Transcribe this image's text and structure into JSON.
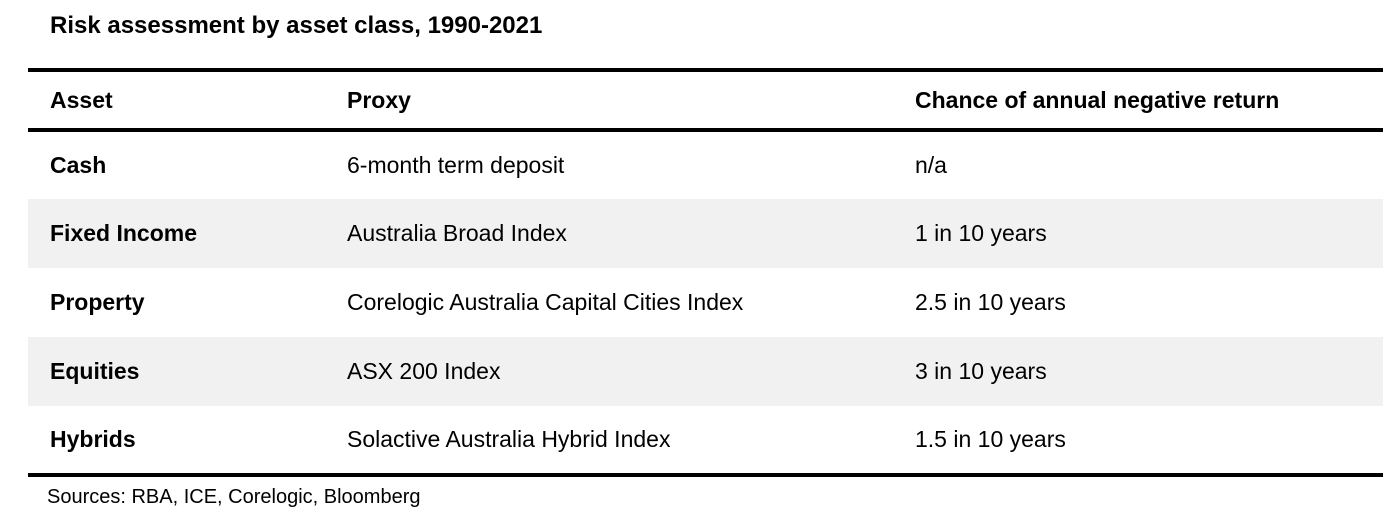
{
  "title": "Risk assessment by asset class, 1990-2021",
  "table": {
    "columns": [
      "Asset",
      "Proxy",
      "Chance of annual negative return"
    ],
    "rows": [
      {
        "asset": "Cash",
        "proxy": "6-month term deposit",
        "chance": "n/a"
      },
      {
        "asset": "Fixed Income",
        "proxy": "Australia Broad Index",
        "chance": "1 in 10 years"
      },
      {
        "asset": "Property",
        "proxy": "Corelogic Australia Capital Cities Index",
        "chance": "2.5 in 10 years"
      },
      {
        "asset": "Equities",
        "proxy": "ASX 200 Index",
        "chance": "3 in 10 years"
      },
      {
        "asset": "Hybrids",
        "proxy": "Solactive Australia Hybrid Index",
        "chance": "1.5 in 10 years"
      }
    ]
  },
  "sources": "Sources: RBA, ICE, Corelogic, Bloomberg",
  "colors": {
    "background": "#ffffff",
    "row_band": "#f1f1f1",
    "rule": "#000000",
    "text": "#000000"
  },
  "chart_data": {
    "type": "table",
    "title": "Risk assessment by asset class, 1990-2021",
    "columns": [
      "Asset",
      "Proxy",
      "Chance of annual negative return"
    ],
    "rows": [
      [
        "Cash",
        "6-month term deposit",
        "n/a"
      ],
      [
        "Fixed Income",
        "Australia Broad Index",
        "1 in 10 years"
      ],
      [
        "Property",
        "Corelogic Australia Capital Cities Index",
        "2.5 in 10 years"
      ],
      [
        "Equities",
        "ASX 200 Index",
        "3 in 10 years"
      ],
      [
        "Hybrids",
        "Solactive Australia Hybrid Index",
        "1.5 in 10 years"
      ]
    ],
    "chance_values_per_10_years": {
      "Cash": null,
      "Fixed Income": 1,
      "Property": 2.5,
      "Equities": 3,
      "Hybrids": 1.5
    },
    "period": "1990-2021",
    "banded_rows": [
      "Fixed Income",
      "Equities"
    ],
    "notes": "Sources: RBA, ICE, Corelogic, Bloomberg"
  }
}
